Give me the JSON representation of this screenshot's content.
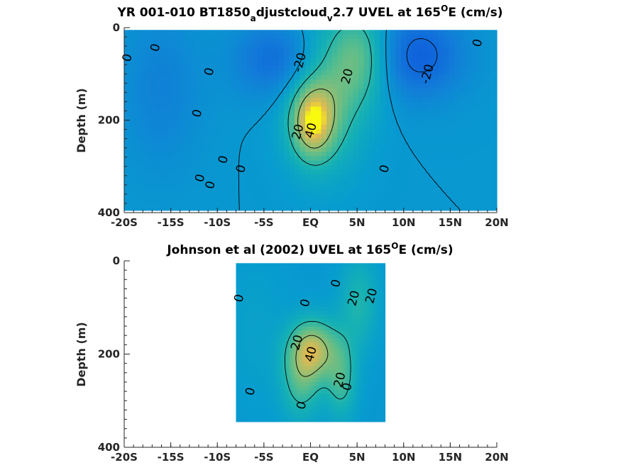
{
  "chart_data": [
    {
      "type": "heatmap",
      "title_parts": [
        "YR 001-010 BT1850",
        "a",
        "djustcloud",
        "v",
        "2.7 UVEL at 165",
        "O",
        "E (cm/s)"
      ],
      "xlabel": "",
      "ylabel": "Depth (m)",
      "xlim": [
        -20,
        20
      ],
      "ylim": [
        0,
        400
      ],
      "y_reversed": true,
      "x_ticks": [
        -20,
        -15,
        -10,
        -5,
        0,
        5,
        10,
        15,
        20
      ],
      "x_tick_labels": [
        "-20S",
        "-15S",
        "-10S",
        "-5S",
        "EQ",
        "5N",
        "10N",
        "15N",
        "20N"
      ],
      "y_ticks": [
        0,
        200,
        400
      ],
      "y_tick_labels": [
        "0",
        "200",
        "400"
      ],
      "data_extent": {
        "x": [
          -20,
          20
        ],
        "depth": [
          5,
          395
        ]
      },
      "contour_levels": [
        -20,
        0,
        20,
        40
      ],
      "features": [
        {
          "kind": "core",
          "x": 0.2,
          "depth": 205,
          "value": 42,
          "sx": 1.6,
          "sy": 55
        },
        {
          "kind": "core",
          "x": 1.6,
          "depth": 140,
          "value": 30,
          "sx": 3.0,
          "sy": 110
        },
        {
          "kind": "core",
          "x": 5.5,
          "depth": 60,
          "value": 26,
          "sx": 2.2,
          "sy": 70
        },
        {
          "kind": "core",
          "x": -3.0,
          "depth": 70,
          "value": -22,
          "sx": 3.5,
          "sy": 60
        },
        {
          "kind": "core",
          "x": 11.5,
          "depth": 60,
          "value": -24,
          "sx": 3.5,
          "sy": 65
        },
        {
          "kind": "core",
          "x": -16,
          "depth": 130,
          "value": -10,
          "sx": 3.0,
          "sy": 120
        }
      ],
      "contour_labels": [
        {
          "text": "0",
          "x": -19.7,
          "depth": 65
        },
        {
          "text": "0",
          "x": -16.7,
          "depth": 43
        },
        {
          "text": "0",
          "x": -10.9,
          "depth": 95
        },
        {
          "text": "0",
          "x": -12.2,
          "depth": 185
        },
        {
          "text": "0",
          "x": -9.4,
          "depth": 285
        },
        {
          "text": "0",
          "x": -7.5,
          "depth": 305
        },
        {
          "text": "0",
          "x": -11.9,
          "depth": 325
        },
        {
          "text": "0",
          "x": -10.8,
          "depth": 340
        },
        {
          "text": "-20",
          "x": -1.2,
          "depth": 75
        },
        {
          "text": "20",
          "x": 3.9,
          "depth": 105
        },
        {
          "text": "-20",
          "x": 12.5,
          "depth": 100
        },
        {
          "text": "0",
          "x": 17.9,
          "depth": 33
        },
        {
          "text": "20",
          "x": -1.4,
          "depth": 225
        },
        {
          "text": "40",
          "x": 0.0,
          "depth": 222
        },
        {
          "text": "0",
          "x": 7.9,
          "depth": 305
        }
      ]
    },
    {
      "type": "heatmap",
      "title_parts": [
        "Johnson et al (2002) UVEL at 165",
        "O",
        "E (cm/s)"
      ],
      "xlabel": "",
      "ylabel": "Depth (m)",
      "xlim": [
        -20,
        20
      ],
      "ylim": [
        0,
        400
      ],
      "y_reversed": true,
      "x_ticks": [
        -20,
        -15,
        -10,
        -5,
        0,
        5,
        10,
        15,
        20
      ],
      "x_tick_labels": [
        "-20S",
        "-15S",
        "-10S",
        "-5S",
        "EQ",
        "5N",
        "10N",
        "15N",
        "20N"
      ],
      "y_ticks": [
        0,
        200,
        400
      ],
      "y_tick_labels": [
        "0",
        "200",
        "400"
      ],
      "data_extent": {
        "x": [
          -8,
          8
        ],
        "depth": [
          5,
          345
        ]
      },
      "contour_levels": [
        0,
        20,
        40
      ],
      "features": [
        {
          "kind": "core",
          "x": 0.3,
          "depth": 190,
          "value": 44,
          "sx": 1.8,
          "sy": 45
        },
        {
          "kind": "core",
          "x": -1.0,
          "depth": 260,
          "value": 24,
          "sx": 1.5,
          "sy": 60
        },
        {
          "kind": "core",
          "x": 3.3,
          "depth": 255,
          "value": 24,
          "sx": 1.2,
          "sy": 60
        },
        {
          "kind": "core",
          "x": 5.2,
          "depth": 90,
          "value": 18,
          "sx": 1.5,
          "sy": 70
        },
        {
          "kind": "core",
          "x": -6.0,
          "depth": 150,
          "value": 5,
          "sx": 2.5,
          "sy": 120
        }
      ],
      "contour_labels": [
        {
          "text": "0",
          "x": -7.7,
          "depth": 80
        },
        {
          "text": "0",
          "x": -0.6,
          "depth": 90
        },
        {
          "text": "0",
          "x": 2.7,
          "depth": 48
        },
        {
          "text": "20",
          "x": 4.6,
          "depth": 80
        },
        {
          "text": "20",
          "x": 6.5,
          "depth": 75
        },
        {
          "text": "20",
          "x": -1.5,
          "depth": 175
        },
        {
          "text": "40",
          "x": 0.0,
          "depth": 200
        },
        {
          "text": "20",
          "x": 3.1,
          "depth": 255
        },
        {
          "text": "0",
          "x": 3.9,
          "depth": 270
        },
        {
          "text": "0",
          "x": -6.5,
          "depth": 280
        },
        {
          "text": "0",
          "x": -1.0,
          "depth": 310
        }
      ]
    }
  ]
}
